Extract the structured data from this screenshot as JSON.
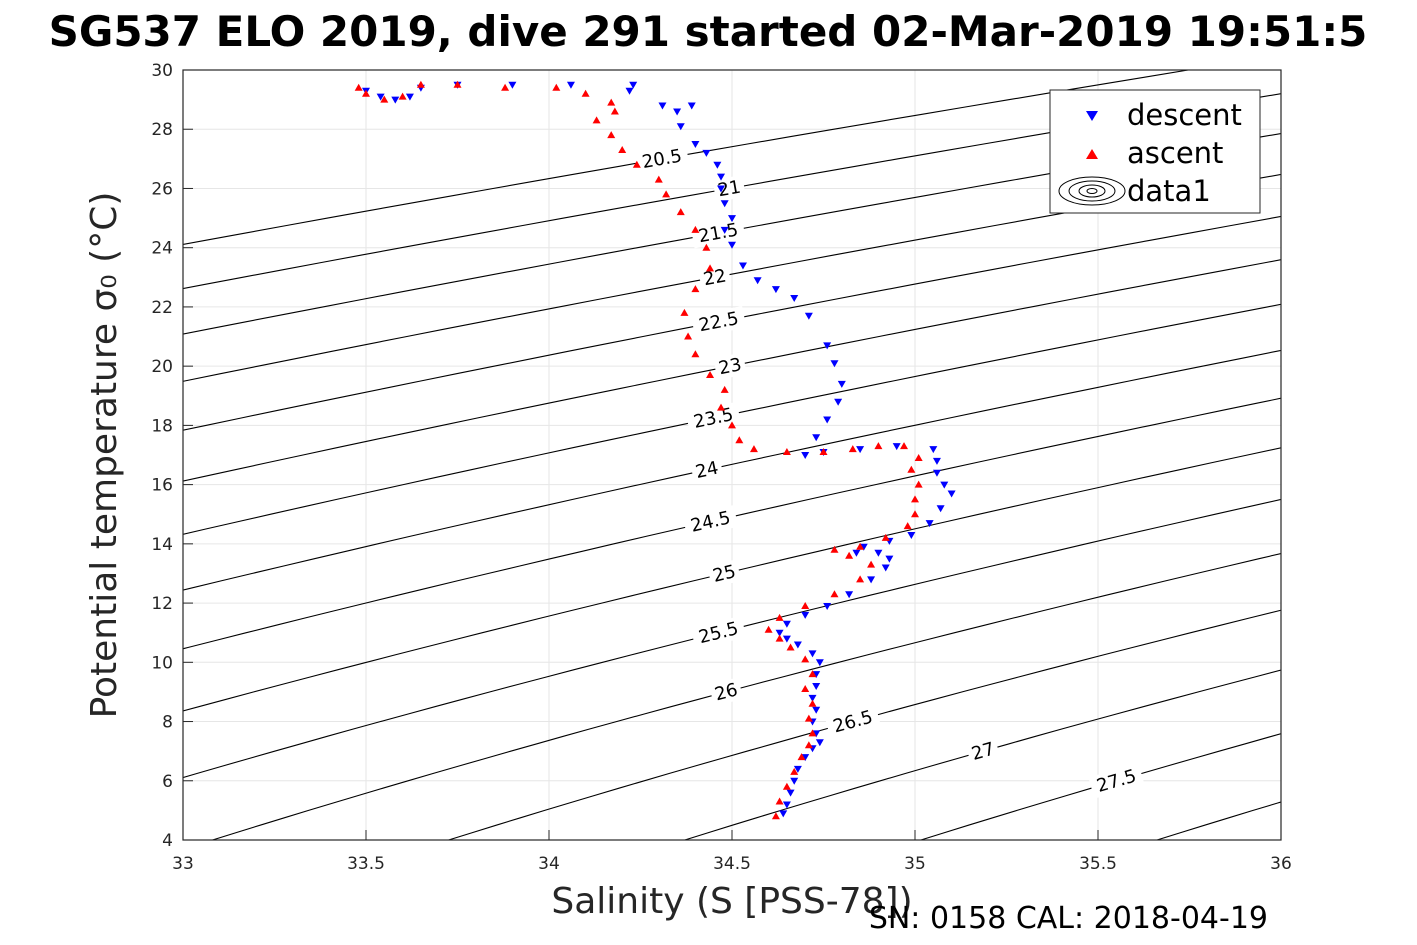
{
  "chart_data": {
    "type": "scatter",
    "title": "SG537 ELO 2019, dive 291 started 02-Mar-2019 19:51:5",
    "xlabel": "Salinity (S [PSS-78])",
    "ylabel": "Potential temperature σ₀ (°C)",
    "footer": "SN: 0158  CAL: 2018-04-19",
    "xlim": [
      33,
      36
    ],
    "ylim": [
      4,
      30
    ],
    "x_ticks": [
      33,
      33.5,
      34,
      34.5,
      35,
      35.5,
      36
    ],
    "x_tick_labels": [
      "33",
      "33.5",
      "34",
      "34.5",
      "35",
      "35.5",
      "36"
    ],
    "y_ticks": [
      4,
      6,
      8,
      10,
      12,
      14,
      16,
      18,
      20,
      22,
      24,
      26,
      28,
      30
    ],
    "y_tick_labels": [
      "4",
      "6",
      "8",
      "10",
      "12",
      "14",
      "16",
      "18",
      "20",
      "22",
      "24",
      "26",
      "28",
      "30"
    ],
    "grid": true,
    "legend_position": "top-right",
    "contour_levels": [
      "20.5",
      "21",
      "21.5",
      "22",
      "22.5",
      "23",
      "23.5",
      "24",
      "24.5",
      "25",
      "25.5",
      "26",
      "26.5",
      "27",
      "27.5",
      "28"
    ],
    "series": [
      {
        "name": "descent",
        "color": "#0000ff",
        "marker": "triangle-down",
        "points": [
          [
            34.64,
            4.9
          ],
          [
            34.65,
            5.2
          ],
          [
            34.66,
            5.6
          ],
          [
            34.67,
            6.0
          ],
          [
            34.68,
            6.4
          ],
          [
            34.7,
            6.8
          ],
          [
            34.72,
            7.1
          ],
          [
            34.74,
            7.3
          ],
          [
            34.73,
            7.6
          ],
          [
            34.72,
            8.0
          ],
          [
            34.73,
            8.4
          ],
          [
            34.72,
            8.8
          ],
          [
            34.73,
            9.2
          ],
          [
            34.73,
            9.6
          ],
          [
            34.74,
            10.0
          ],
          [
            34.72,
            10.3
          ],
          [
            34.68,
            10.6
          ],
          [
            34.65,
            10.8
          ],
          [
            34.63,
            11.0
          ],
          [
            34.65,
            11.3
          ],
          [
            34.7,
            11.6
          ],
          [
            34.76,
            11.9
          ],
          [
            34.82,
            12.3
          ],
          [
            34.88,
            12.8
          ],
          [
            34.92,
            13.2
          ],
          [
            34.93,
            13.5
          ],
          [
            34.9,
            13.7
          ],
          [
            34.84,
            13.7
          ],
          [
            34.86,
            13.9
          ],
          [
            34.93,
            14.1
          ],
          [
            34.99,
            14.3
          ],
          [
            35.04,
            14.7
          ],
          [
            35.07,
            15.2
          ],
          [
            35.1,
            15.7
          ],
          [
            35.08,
            16.0
          ],
          [
            35.06,
            16.4
          ],
          [
            35.06,
            16.8
          ],
          [
            35.05,
            17.2
          ],
          [
            34.95,
            17.3
          ],
          [
            34.85,
            17.2
          ],
          [
            34.75,
            17.1
          ],
          [
            34.7,
            17.0
          ],
          [
            34.73,
            17.6
          ],
          [
            34.76,
            18.2
          ],
          [
            34.79,
            18.8
          ],
          [
            34.8,
            19.4
          ],
          [
            34.78,
            20.1
          ],
          [
            34.76,
            20.7
          ],
          [
            34.71,
            21.7
          ],
          [
            34.67,
            22.3
          ],
          [
            34.62,
            22.6
          ],
          [
            34.57,
            22.9
          ],
          [
            34.53,
            23.4
          ],
          [
            34.5,
            24.1
          ],
          [
            34.48,
            24.6
          ],
          [
            34.5,
            25.0
          ],
          [
            34.48,
            25.5
          ],
          [
            34.47,
            26.0
          ],
          [
            34.47,
            26.4
          ],
          [
            34.46,
            26.8
          ],
          [
            34.43,
            27.2
          ],
          [
            34.4,
            27.5
          ],
          [
            34.36,
            28.1
          ],
          [
            34.35,
            28.6
          ],
          [
            34.39,
            28.8
          ],
          [
            34.31,
            28.8
          ],
          [
            34.22,
            29.3
          ],
          [
            34.23,
            29.5
          ],
          [
            34.06,
            29.5
          ],
          [
            33.9,
            29.5
          ],
          [
            33.75,
            29.5
          ],
          [
            33.65,
            29.4
          ],
          [
            33.62,
            29.1
          ],
          [
            33.58,
            29.0
          ],
          [
            33.54,
            29.1
          ],
          [
            33.5,
            29.3
          ]
        ]
      },
      {
        "name": "ascent",
        "color": "#ff0000",
        "marker": "triangle-up",
        "points": [
          [
            34.62,
            4.8
          ],
          [
            34.63,
            5.3
          ],
          [
            34.65,
            5.8
          ],
          [
            34.67,
            6.3
          ],
          [
            34.69,
            6.8
          ],
          [
            34.71,
            7.2
          ],
          [
            34.72,
            7.6
          ],
          [
            34.71,
            8.1
          ],
          [
            34.72,
            8.6
          ],
          [
            34.7,
            9.1
          ],
          [
            34.72,
            9.6
          ],
          [
            34.7,
            10.1
          ],
          [
            34.66,
            10.5
          ],
          [
            34.63,
            10.8
          ],
          [
            34.6,
            11.1
          ],
          [
            34.63,
            11.5
          ],
          [
            34.7,
            11.9
          ],
          [
            34.78,
            12.3
          ],
          [
            34.85,
            12.8
          ],
          [
            34.88,
            13.3
          ],
          [
            34.82,
            13.6
          ],
          [
            34.78,
            13.8
          ],
          [
            34.85,
            13.9
          ],
          [
            34.92,
            14.2
          ],
          [
            34.98,
            14.6
          ],
          [
            35.0,
            15.0
          ],
          [
            35.0,
            15.5
          ],
          [
            35.01,
            16.0
          ],
          [
            34.99,
            16.5
          ],
          [
            35.01,
            16.9
          ],
          [
            34.97,
            17.3
          ],
          [
            34.9,
            17.3
          ],
          [
            34.83,
            17.2
          ],
          [
            34.75,
            17.1
          ],
          [
            34.65,
            17.1
          ],
          [
            34.56,
            17.2
          ],
          [
            34.52,
            17.5
          ],
          [
            34.5,
            18.0
          ],
          [
            34.47,
            18.6
          ],
          [
            34.48,
            19.2
          ],
          [
            34.44,
            19.7
          ],
          [
            34.4,
            20.4
          ],
          [
            34.38,
            21.0
          ],
          [
            34.37,
            21.8
          ],
          [
            34.4,
            22.6
          ],
          [
            34.44,
            23.3
          ],
          [
            34.43,
            24.0
          ],
          [
            34.4,
            24.6
          ],
          [
            34.36,
            25.2
          ],
          [
            34.32,
            25.8
          ],
          [
            34.3,
            26.3
          ],
          [
            34.24,
            26.8
          ],
          [
            34.2,
            27.3
          ],
          [
            34.17,
            27.8
          ],
          [
            34.13,
            28.3
          ],
          [
            34.18,
            28.6
          ],
          [
            34.17,
            28.9
          ],
          [
            34.1,
            29.2
          ],
          [
            34.02,
            29.4
          ],
          [
            33.88,
            29.4
          ],
          [
            33.75,
            29.5
          ],
          [
            33.65,
            29.5
          ],
          [
            33.6,
            29.1
          ],
          [
            33.55,
            29.0
          ],
          [
            33.5,
            29.2
          ],
          [
            33.48,
            29.4
          ]
        ]
      }
    ],
    "legend": [
      {
        "label": "descent",
        "marker": "triangle-down",
        "color": "#0000ff"
      },
      {
        "label": "ascent",
        "marker": "triangle-up",
        "color": "#ff0000"
      },
      {
        "label": "data1",
        "marker": "contour-icon",
        "color": "#000000"
      }
    ]
  }
}
